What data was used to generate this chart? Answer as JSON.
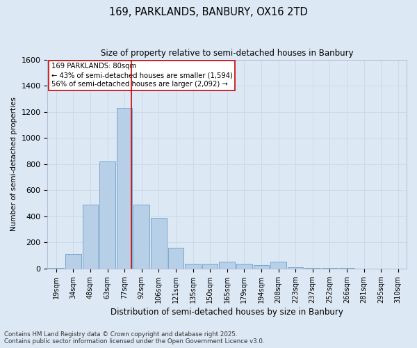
{
  "title": "169, PARKLANDS, BANBURY, OX16 2TD",
  "subtitle": "Size of property relative to semi-detached houses in Banbury",
  "xlabel": "Distribution of semi-detached houses by size in Banbury",
  "ylabel": "Number of semi-detached properties",
  "categories": [
    "19sqm",
    "34sqm",
    "48sqm",
    "63sqm",
    "77sqm",
    "92sqm",
    "106sqm",
    "121sqm",
    "135sqm",
    "150sqm",
    "165sqm",
    "179sqm",
    "194sqm",
    "208sqm",
    "223sqm",
    "237sqm",
    "252sqm",
    "266sqm",
    "281sqm",
    "295sqm",
    "310sqm"
  ],
  "values": [
    5,
    110,
    490,
    820,
    1230,
    490,
    390,
    160,
    35,
    35,
    55,
    35,
    25,
    55,
    10,
    5,
    3,
    2,
    1,
    1,
    0
  ],
  "bar_color": "#b8cfe8",
  "bar_edge_color": "#6a9fc8",
  "vline_x_index": 4,
  "vline_color": "#cc0000",
  "vline_label": "169 PARKLANDS: 80sqm",
  "annotation_smaller": "← 43% of semi-detached houses are smaller (1,594)",
  "annotation_larger": "56% of semi-detached houses are larger (2,092) →",
  "annotation_box_facecolor": "#ffffff",
  "annotation_box_edgecolor": "#cc0000",
  "ylim": [
    0,
    1600
  ],
  "yticks": [
    0,
    200,
    400,
    600,
    800,
    1000,
    1200,
    1400,
    1600
  ],
  "grid_color": "#c8d8e8",
  "background_color": "#dce8f4",
  "footer_line1": "Contains HM Land Registry data © Crown copyright and database right 2025.",
  "footer_line2": "Contains public sector information licensed under the Open Government Licence v3.0."
}
